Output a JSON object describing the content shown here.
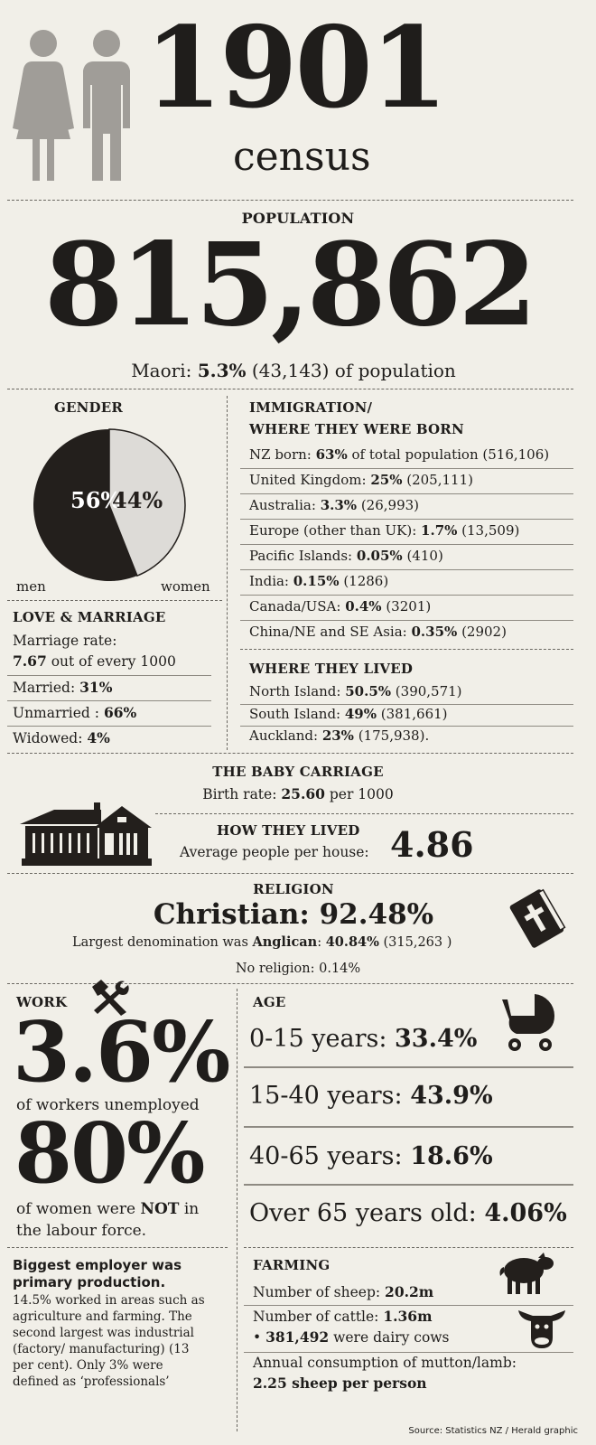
{
  "header": {
    "year": "1901",
    "subtitle": "census",
    "icon": "man-woman-icon"
  },
  "population": {
    "label": "POPULATION",
    "value": "815,862",
    "maori_prefix": "Maori: ",
    "maori_pct": "5.3%",
    "maori_suffix": " (43,143) of population"
  },
  "gender": {
    "title": "GENDER",
    "men_pct": "56%",
    "women_pct": "44%",
    "men_label": "men",
    "women_label": "women",
    "men_value": 56,
    "women_value": 44,
    "colors": {
      "men": "#231f1c",
      "women": "#dddbd7"
    }
  },
  "immigration": {
    "title1": "IMMIGRATION/",
    "title2": "WHERE THEY WERE BORN",
    "rows": [
      {
        "label": "NZ born: ",
        "pct": "63%",
        "rest": " of total population (516,106)"
      },
      {
        "label": "United Kingdom: ",
        "pct": "25%",
        "rest": " (205,111)"
      },
      {
        "label": "Australia: ",
        "pct": "3.3%",
        "rest": " (26,993)"
      },
      {
        "label": "Europe (other than UK): ",
        "pct": "1.7%",
        "rest": " (13,509)"
      },
      {
        "label": "Pacific Islands: ",
        "pct": "0.05%",
        "rest": " (410)"
      },
      {
        "label": "India: ",
        "pct": "0.15%",
        "rest": " (1286)"
      },
      {
        "label": "Canada/USA: ",
        "pct": "0.4%",
        "rest": " (3201)"
      },
      {
        "label": "China/NE and SE Asia: ",
        "pct": "0.35%",
        "rest": " (2902)"
      }
    ]
  },
  "love": {
    "title": "LOVE & MARRIAGE",
    "rate_label": "Marriage rate:",
    "rate_value": "7.67",
    "rate_suffix": " out of every 1000",
    "rows": [
      {
        "label": "Married: ",
        "pct": "31%"
      },
      {
        "label": "Unmarried : ",
        "pct": "66%"
      },
      {
        "label": "Widowed: ",
        "pct": "4%"
      }
    ]
  },
  "lived": {
    "title": "WHERE THEY LIVED",
    "rows": [
      {
        "label": "North Island: ",
        "pct": "50.5%",
        "rest": " (390,571)"
      },
      {
        "label": "South Island: ",
        "pct": "49%",
        "rest": " (381,661)"
      },
      {
        "label": "Auckland: ",
        "pct": "23%",
        "rest": " (175,938)."
      }
    ]
  },
  "baby": {
    "title": "THE BABY CARRIAGE",
    "rate_prefix": "Birth rate: ",
    "rate_value": "25.60",
    "rate_suffix": " per 1000"
  },
  "house": {
    "title": "HOW THEY LIVED",
    "label": "Average people per house:",
    "value": "4.86",
    "icon": "house-icon"
  },
  "religion": {
    "title": "RELIGION",
    "christian_label": "Christian: ",
    "christian_value": "92.48%",
    "denom_prefix": "Largest denomination was ",
    "denom_name": "Anglican",
    "denom_sep": ": ",
    "denom_pct": "40.84%",
    "denom_rest": " (315,263 )",
    "none": "No religion: 0.14%",
    "icon": "bible-icon"
  },
  "work": {
    "title": "WORK",
    "icon": "hammer-wrench-icon",
    "unemployed_value": "3.6%",
    "unemployed_label": "of workers unemployed",
    "women_value": "80%",
    "women_prefix": "of women were ",
    "women_not": "NOT",
    "women_suffix": " in",
    "women_line2": "the labour force.",
    "employer_title1": "Biggest employer was",
    "employer_title2": "primary production.",
    "employer_lines": [
      "14.5% worked in areas such as",
      "agriculture and farming. The",
      "second largest was industrial",
      "(factory/ manufacturing) (13",
      "per cent). Only 3% were",
      "defined as ‘professionals’"
    ]
  },
  "age": {
    "title": "AGE",
    "icon": "pram-icon",
    "rows": [
      {
        "label": "0-15 years: ",
        "pct": "33.4%"
      },
      {
        "label": "15-40 years: ",
        "pct": "43.9%"
      },
      {
        "label": "40-65 years: ",
        "pct": "18.6%"
      },
      {
        "label": "Over 65 years old: ",
        "pct": "4.06%"
      }
    ]
  },
  "farming": {
    "title": "FARMING",
    "sheep_label": "Number of sheep: ",
    "sheep_value": "20.2m",
    "cattle_label": "Number of cattle: ",
    "cattle_value": "1.36m",
    "dairy_value": "381,492",
    "dairy_suffix": " were dairy cows",
    "mutton_line1": "Annual consumption of mutton/lamb:",
    "mutton_line2": "2.25 sheep per person",
    "sheep_icon": "sheep-icon",
    "cow_icon": "cow-icon"
  },
  "source": "Source: Statistics NZ / Herald graphic"
}
